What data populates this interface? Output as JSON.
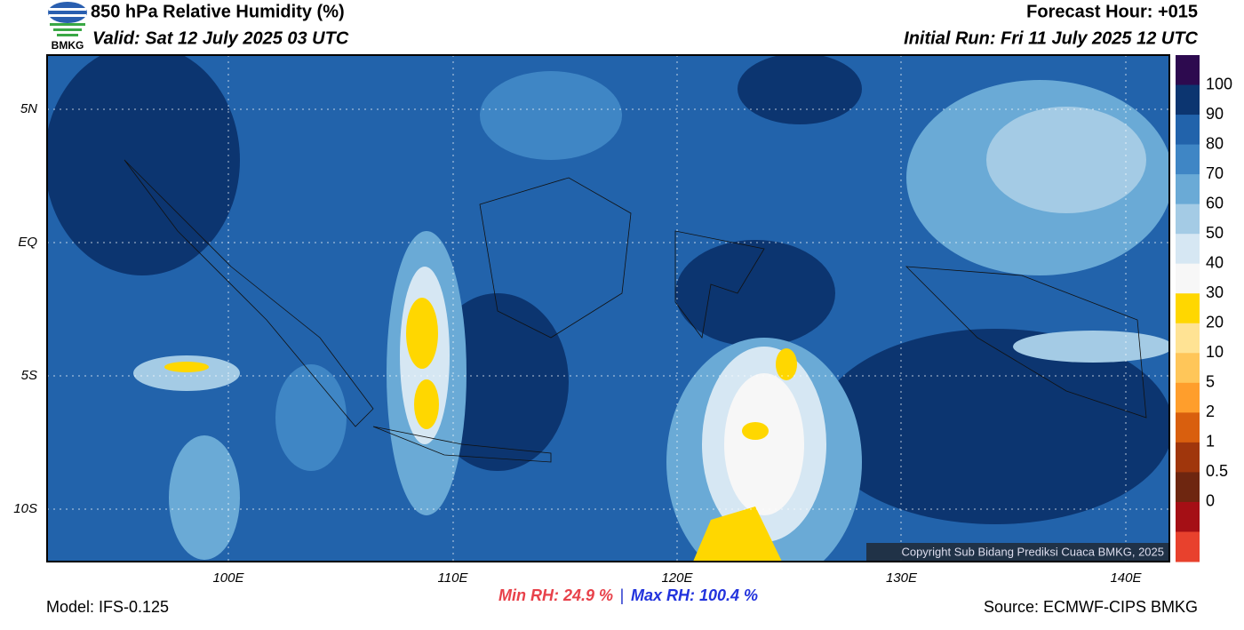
{
  "header": {
    "logo_text": "BMKG",
    "title": "850 hPa Relative Humidity (%)",
    "valid": "Valid: Sat 12 July 2025 03 UTC",
    "forecast_hour": "Forecast Hour: +015",
    "initial_run": "Initial Run: Fri 11 July 2025 12 UTC"
  },
  "map": {
    "lat_labels": [
      "5N",
      "EQ",
      "5S",
      "10S"
    ],
    "lon_labels": [
      "100E",
      "110E",
      "120E",
      "130E",
      "140E"
    ],
    "copyright": "Copyright Sub Bidang Prediksi Cuaca BMKG, 2025"
  },
  "colorbar": {
    "colors": [
      "#2d0a4f",
      "#0c3570",
      "#2263ab",
      "#3f86c5",
      "#6aaad6",
      "#a4cbe5",
      "#d6e7f3",
      "#f7f7f7",
      "#ffd700",
      "#ffe394",
      "#ffc659",
      "#ff9e2c",
      "#d95f0e",
      "#a0360c",
      "#6e2610",
      "#a50f15",
      "#e8412d"
    ],
    "labels": [
      100,
      90,
      80,
      70,
      60,
      50,
      40,
      30,
      20,
      10,
      5,
      2,
      1,
      0.5,
      0
    ]
  },
  "footer": {
    "model": "Model: IFS-0.125",
    "min_rh": "Min RH:  24.9 %",
    "separator": "|",
    "max_rh": "Max RH: 100.4 %",
    "source": "Source: ECMWF-CIPS BMKG"
  }
}
